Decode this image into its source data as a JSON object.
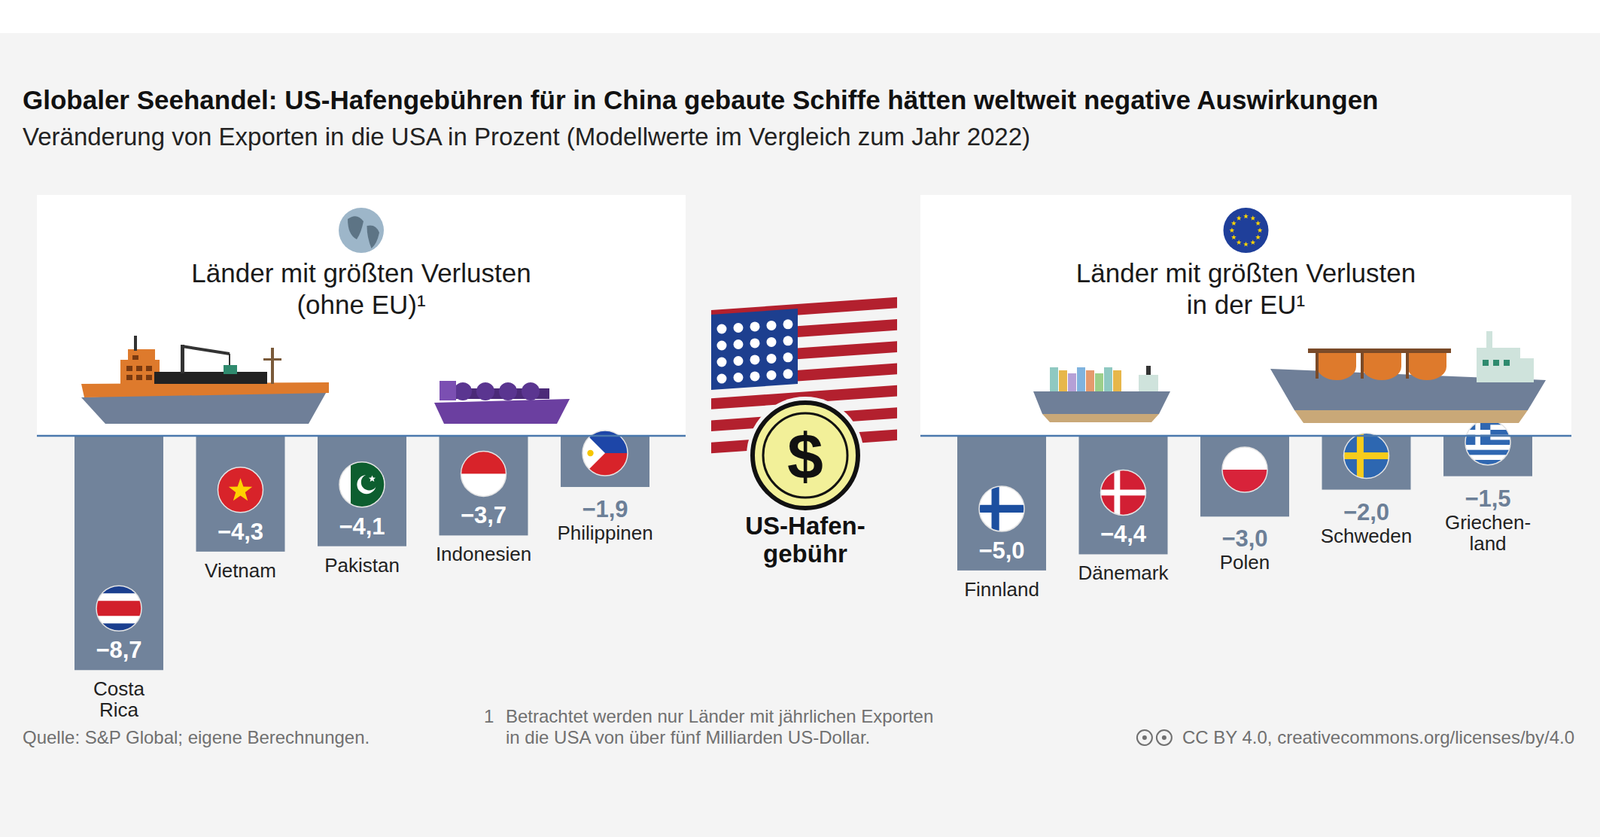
{
  "title": "Globaler Seehandel: US-Hafengebühren für in China gebaute Schiffe hätten weltweit negative Auswirkungen",
  "subtitle": "Veränderung von Exporten in die USA in Prozent (Modellwerte im Vergleich zum Jahr 2022)",
  "center_symbol": "$",
  "center_label": "US-Hafen-\ngebühr",
  "source": "Quelle: S&P Global; eigene Berechnungen.",
  "footnote_marker": "1",
  "footnote": "Betrachtet werden nur Länder mit jährlichen Exporten\nin die USA von über fünf Milliarden US-Dollar.",
  "license": "CC BY 4.0, creativecommons.org/licenses/by/4.0",
  "chart_data": [
    {
      "type": "bar",
      "title": "Länder mit größten Verlusten\n(ohne EU)¹",
      "categories": [
        "Costa\nRica",
        "Vietnam",
        "Pakistan",
        "Indonesien",
        "Philippinen"
      ],
      "values": [
        -8.7,
        -4.3,
        -4.1,
        -3.7,
        -1.9
      ],
      "value_labels": [
        "−8,7",
        "−4,3",
        "−4,1",
        "−3,7",
        "−1,9"
      ],
      "color": "#71839b",
      "ylim": [
        -9,
        0
      ],
      "data_labels": true,
      "tick_labels": false
    },
    {
      "type": "bar",
      "title": "Länder mit größten Verlusten\nin der EU¹",
      "categories": [
        "Finnland",
        "Dänemark",
        "Polen",
        "Schweden",
        "Griechen-\nland"
      ],
      "values": [
        -5.0,
        -4.4,
        -3.0,
        -2.0,
        -1.5
      ],
      "value_labels": [
        "−5,0",
        "−4,4",
        "−3,0",
        "−2,0",
        "−1,5"
      ],
      "color": "#71839b",
      "ylim": [
        -9,
        0
      ],
      "data_labels": true,
      "tick_labels": false
    }
  ]
}
